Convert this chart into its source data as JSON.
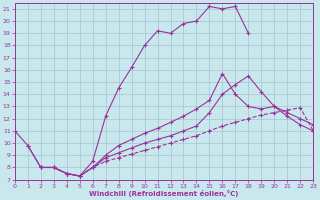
{
  "background_color": "#c8e8ee",
  "grid_color": "#a0b8c8",
  "line_color": "#993399",
  "xlim": [
    0,
    23
  ],
  "ylim": [
    7,
    21.5
  ],
  "yticks": [
    7,
    8,
    9,
    10,
    11,
    12,
    13,
    14,
    15,
    16,
    17,
    18,
    19,
    20,
    21
  ],
  "xticks": [
    0,
    1,
    2,
    3,
    4,
    5,
    6,
    7,
    8,
    9,
    10,
    11,
    12,
    13,
    14,
    15,
    16,
    17,
    18,
    19,
    20,
    21,
    22,
    23
  ],
  "xlabel": "Windchill (Refroidissement éolien,°C)",
  "line1_x": [
    0,
    1,
    2,
    3,
    4,
    5,
    6,
    7,
    8,
    9,
    10,
    11,
    12,
    13,
    14,
    15,
    16,
    17,
    18
  ],
  "line1_y": [
    11.0,
    9.8,
    8.0,
    8.0,
    7.5,
    7.3,
    8.5,
    12.2,
    14.5,
    16.2,
    18.0,
    19.2,
    19.0,
    19.8,
    20.0,
    21.2,
    21.0,
    21.2,
    19.0
  ],
  "line2_x": [
    1,
    2,
    3,
    4,
    5,
    6,
    7,
    8,
    9,
    10,
    11,
    12,
    13,
    14,
    15,
    16,
    17,
    18,
    19,
    20,
    21,
    22,
    23
  ],
  "line2_y": [
    9.8,
    8.0,
    8.0,
    7.5,
    7.3,
    8.0,
    9.0,
    9.8,
    10.3,
    10.8,
    11.2,
    11.7,
    12.2,
    12.8,
    13.5,
    15.7,
    14.0,
    13.0,
    12.8,
    13.0,
    12.5,
    12.0,
    11.5
  ],
  "line3_x": [
    2,
    3,
    4,
    5,
    6,
    7,
    8,
    9,
    10,
    11,
    12,
    13,
    14,
    15,
    16,
    17,
    18,
    19,
    20,
    21,
    22,
    23
  ],
  "line3_y": [
    8.0,
    8.0,
    7.5,
    7.3,
    8.0,
    8.8,
    9.2,
    9.6,
    10.0,
    10.3,
    10.6,
    11.0,
    11.4,
    12.5,
    14.0,
    14.8,
    15.5,
    14.2,
    13.0,
    12.2,
    11.5,
    11.0
  ],
  "line4_x": [
    2,
    3,
    4,
    5,
    6,
    7,
    8,
    9,
    10,
    11,
    12,
    13,
    14,
    15,
    16,
    17,
    18,
    19,
    20,
    21,
    22,
    23
  ],
  "line4_y": [
    8.0,
    8.0,
    7.5,
    7.3,
    8.0,
    8.5,
    8.8,
    9.1,
    9.4,
    9.7,
    10.0,
    10.3,
    10.6,
    11.0,
    11.4,
    11.7,
    12.0,
    12.3,
    12.5,
    12.7,
    12.9,
    11.0
  ]
}
